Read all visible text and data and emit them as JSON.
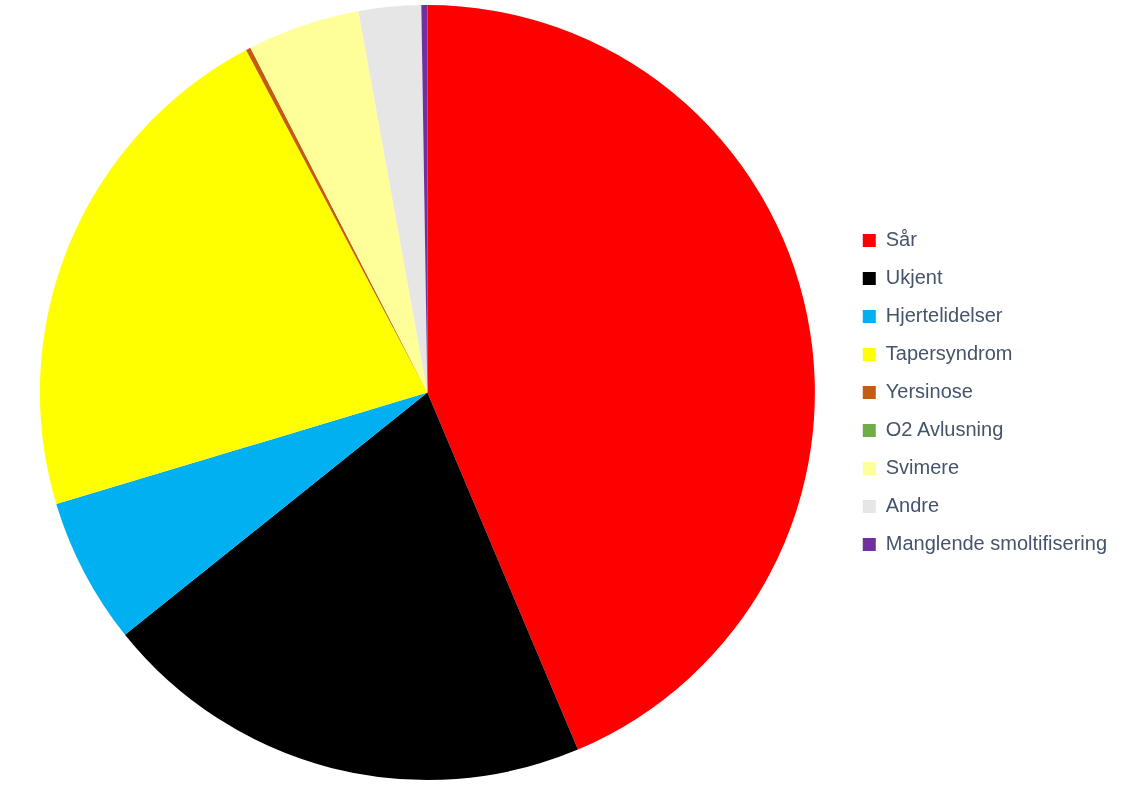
{
  "chart_data": {
    "type": "pie",
    "categories": [
      "Sår",
      "Ukjent",
      "Hjertelidelser",
      "Tapersyndrom",
      "Yersinose",
      "O2 Avlusning",
      "Svimere",
      "Andre",
      "Manglende smoltifisering"
    ],
    "values": [
      43.65,
      20.6,
      6.1,
      21.9,
      0.2,
      0,
      4.7,
      2.6,
      0.25
    ],
    "colors": [
      "#ff0000",
      "#000000",
      "#00b0f0",
      "#ffff00",
      "#c55a11",
      "#70ad47",
      "#ffff99",
      "#e7e6e6",
      "#7030a0"
    ],
    "legend": "right"
  }
}
